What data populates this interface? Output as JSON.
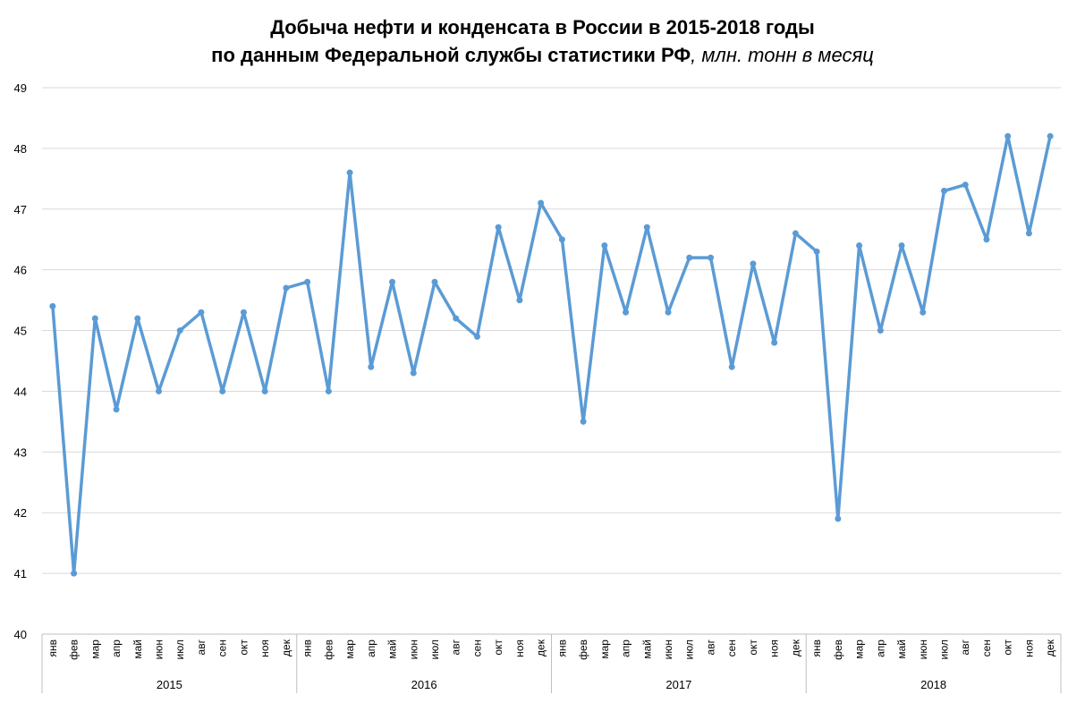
{
  "title_line1": "Добыча нефти и конденсата в России в 2015-2018 годы",
  "title_line2": "по данным Федеральной службы статистики РФ",
  "title_unit": ", млн. тонн в месяц",
  "colors": {
    "line": "#5B9BD5",
    "grid": "#D9D9D9",
    "axis": "#BFBFBF"
  },
  "chart_data": {
    "type": "line",
    "title": "Добыча нефти и конденсата в России в 2015-2018 годы по данным Федеральной службы статистики РФ, млн. тонн в месяц",
    "xlabel": "",
    "ylabel": "",
    "ylim": [
      40,
      49
    ],
    "yticks": [
      40,
      41,
      42,
      43,
      44,
      45,
      46,
      47,
      48,
      49
    ],
    "grid": true,
    "legend": "none",
    "months": [
      "янв",
      "фев",
      "мар",
      "апр",
      "май",
      "июн",
      "июл",
      "авг",
      "сен",
      "окт",
      "ноя",
      "дек"
    ],
    "years": [
      "2015",
      "2016",
      "2017",
      "2018"
    ],
    "series": [
      {
        "values": [
          45.4,
          41.0,
          45.2,
          43.7,
          45.2,
          44.0,
          45.0,
          45.3,
          44.0,
          45.3,
          44.0,
          45.7,
          45.8,
          44.0,
          47.6,
          44.4,
          45.8,
          44.3,
          45.8,
          45.2,
          44.9,
          46.7,
          45.5,
          47.1,
          46.5,
          43.5,
          46.4,
          45.3,
          46.7,
          45.3,
          46.2,
          46.2,
          44.4,
          46.1,
          44.8,
          46.6,
          46.3,
          41.9,
          46.4,
          45.0,
          46.4,
          45.3,
          47.3,
          47.4,
          46.5,
          48.2,
          46.6,
          48.2
        ]
      }
    ]
  }
}
